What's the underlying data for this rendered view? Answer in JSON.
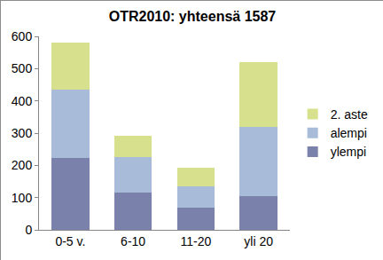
{
  "chart_data": {
    "type": "bar",
    "title": "OTR2010: yhteensä 1587",
    "categories": [
      "0-5 v.",
      "6-10",
      "11-20",
      "yli 20"
    ],
    "series": [
      {
        "name": "ylempi",
        "color": "#7a82ab",
        "values": [
          222,
          115,
          68,
          105
        ]
      },
      {
        "name": "alempi",
        "color": "#a8bbd8",
        "values": [
          212,
          110,
          67,
          215
        ]
      },
      {
        "name": "2. aste",
        "color": "#d7e08c",
        "values": [
          147,
          68,
          58,
          200
        ]
      }
    ],
    "stacked": true,
    "ylim": [
      0,
      600
    ],
    "yticks": [
      0,
      100,
      200,
      300,
      400,
      500,
      600
    ],
    "grid": false,
    "legend": "right"
  }
}
